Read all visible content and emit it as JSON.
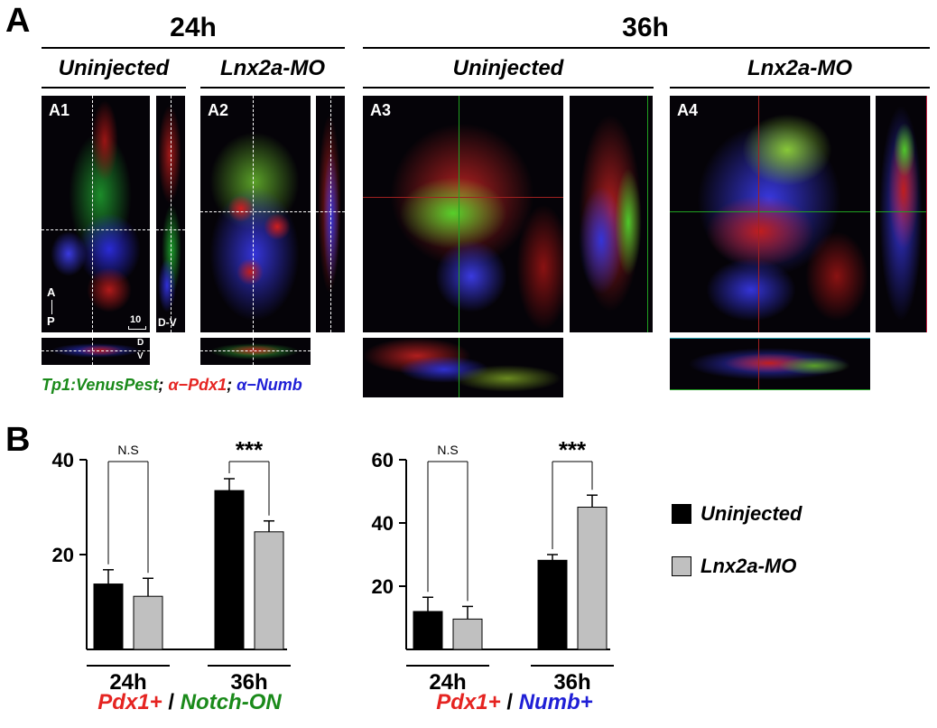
{
  "panelA": {
    "letter": "A",
    "time24": "24h",
    "time36": "36h",
    "cond_uninjected": "Uninjected",
    "cond_mo": "Lnx2a-MO",
    "labels": [
      "A1",
      "A2",
      "A3",
      "A4"
    ],
    "axis_A": "A",
    "axis_P": "P",
    "scale": "10",
    "dv": "D-V",
    "d": "D",
    "v": "V",
    "caption_venus": "Tp1:VenusPest",
    "caption_sep1": ";",
    "caption_pdx1": "α−Pdx1",
    "caption_sep2": ";",
    "caption_numb": "α−Numb",
    "colors": {
      "venus": "#1a8a1a",
      "pdx1": "#e52421",
      "numb": "#1f1fd6"
    }
  },
  "panelB": {
    "letter": "B",
    "sig_ns": "N.S",
    "sig_star": "***",
    "xlabel_left": {
      "a": "Pdx1+",
      "sep": " / ",
      "b": "Notch-ON"
    },
    "xlabel_right": {
      "a": "Pdx1+",
      "sep": " / ",
      "b": "Numb+"
    },
    "legend": [
      {
        "name": "Uninjected",
        "color": "#000000"
      },
      {
        "name": "Lnx2a-MO",
        "color": "#c0c0c0"
      }
    ]
  },
  "chart_data": [
    {
      "type": "bar",
      "categories": [
        "24h",
        "36h"
      ],
      "series": [
        {
          "name": "Uninjected",
          "values": [
            13.8,
            33.5
          ],
          "errors": [
            3.0,
            2.5
          ]
        },
        {
          "name": "Lnx2a-MO",
          "values": [
            11.2,
            24.8
          ],
          "errors": [
            3.8,
            2.3
          ]
        }
      ],
      "significance": [
        "N.S",
        "***"
      ],
      "xlabel": "Pdx1+ / Notch-ON",
      "ylim": [
        0,
        40
      ],
      "yticks": [
        20,
        40
      ]
    },
    {
      "type": "bar",
      "categories": [
        "24h",
        "36h"
      ],
      "series": [
        {
          "name": "Uninjected",
          "values": [
            12.0,
            28.2
          ],
          "errors": [
            4.5,
            1.8
          ]
        },
        {
          "name": "Lnx2a-MO",
          "values": [
            9.6,
            45.0
          ],
          "errors": [
            4.0,
            3.8
          ]
        }
      ],
      "significance": [
        "N.S",
        "***"
      ],
      "xlabel": "Pdx1+ / Numb+",
      "ylim": [
        0,
        60
      ],
      "yticks": [
        20,
        40,
        60
      ]
    }
  ]
}
